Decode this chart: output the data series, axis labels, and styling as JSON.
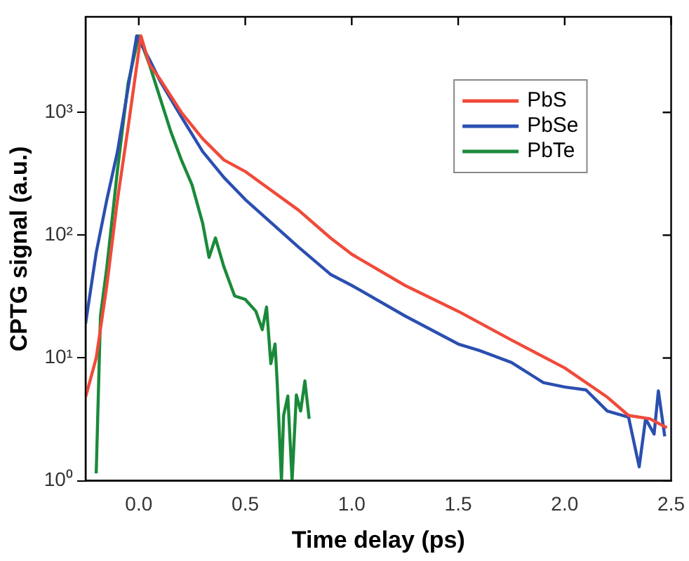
{
  "chart_data": {
    "type": "line",
    "xlabel": "Time delay (ps)",
    "ylabel": "CPTG signal (a.u.)",
    "log": "y",
    "grid": false,
    "legend": "top right",
    "marker": "none",
    "line_style": "solid",
    "xlim": [
      -0.25,
      2.5
    ],
    "xticks": [
      {
        "value": 0,
        "label": "0.0"
      },
      0.5,
      {
        "value": 1,
        "label": "1.0"
      },
      1.5,
      {
        "value": 2,
        "label": "2.0"
      },
      2.5
    ],
    "ylim": [
      1,
      6000
    ],
    "yticks": [
      {
        "value": 1,
        "label": "10⁰"
      },
      {
        "value": 10,
        "label": "10¹"
      },
      {
        "value": 100,
        "label": "10²"
      },
      {
        "value": 1000,
        "label": "10³"
      }
    ],
    "series": [
      {
        "name": "PbS",
        "color": "#f04a3a",
        "x": [
          -0.25,
          -0.2,
          -0.15,
          -0.1,
          -0.05,
          0.01,
          0.05,
          0.1,
          0.2,
          0.3,
          0.4,
          0.5,
          0.75,
          0.9,
          1.0,
          1.25,
          1.5,
          1.75,
          2.0,
          2.2,
          2.3,
          2.4,
          2.48
        ],
        "values": [
          4.8,
          10,
          39,
          195,
          760,
          4200,
          2450,
          1860,
          1000,
          610,
          410,
          330,
          160,
          95,
          70,
          39,
          24,
          14,
          8.3,
          4.8,
          3.4,
          3.2,
          2.7
        ]
      },
      {
        "name": "PbSe",
        "color": "#2b4fb0",
        "x": [
          -0.25,
          -0.2,
          -0.15,
          -0.1,
          -0.05,
          -0.01,
          0.05,
          0.1,
          0.2,
          0.3,
          0.4,
          0.5,
          0.75,
          0.9,
          1.0,
          1.25,
          1.5,
          1.6,
          1.75,
          1.9,
          2.0,
          2.1,
          2.2,
          2.3,
          2.35,
          2.38,
          2.42,
          2.44,
          2.47
        ],
        "values": [
          19,
          72,
          195,
          480,
          1590,
          4200,
          2700,
          1800,
          920,
          480,
          295,
          195,
          80,
          48,
          39,
          22,
          13,
          11.5,
          9.2,
          6.3,
          5.8,
          5.5,
          3.7,
          3.3,
          1.3,
          3.2,
          2.4,
          5.4,
          2.3
        ]
      },
      {
        "name": "PbTe",
        "color": "#1a8a3a",
        "x": [
          -0.2,
          -0.18,
          -0.15,
          -0.1,
          -0.05,
          0,
          0.05,
          0.1,
          0.15,
          0.2,
          0.25,
          0.3,
          0.33,
          0.36,
          0.4,
          0.45,
          0.5,
          0.55,
          0.58,
          0.6,
          0.62,
          0.64,
          0.65,
          0.67,
          0.68,
          0.7,
          0.72,
          0.74,
          0.76,
          0.78,
          0.8
        ],
        "values": [
          1.15,
          22,
          55,
          340,
          1740,
          4200,
          2450,
          1310,
          700,
          410,
          257,
          125,
          66,
          95,
          55,
          32,
          30,
          24,
          17,
          26,
          9,
          13,
          6.3,
          1,
          3.4,
          4.9,
          1,
          5,
          3.7,
          6.5,
          3.2
        ]
      }
    ]
  }
}
